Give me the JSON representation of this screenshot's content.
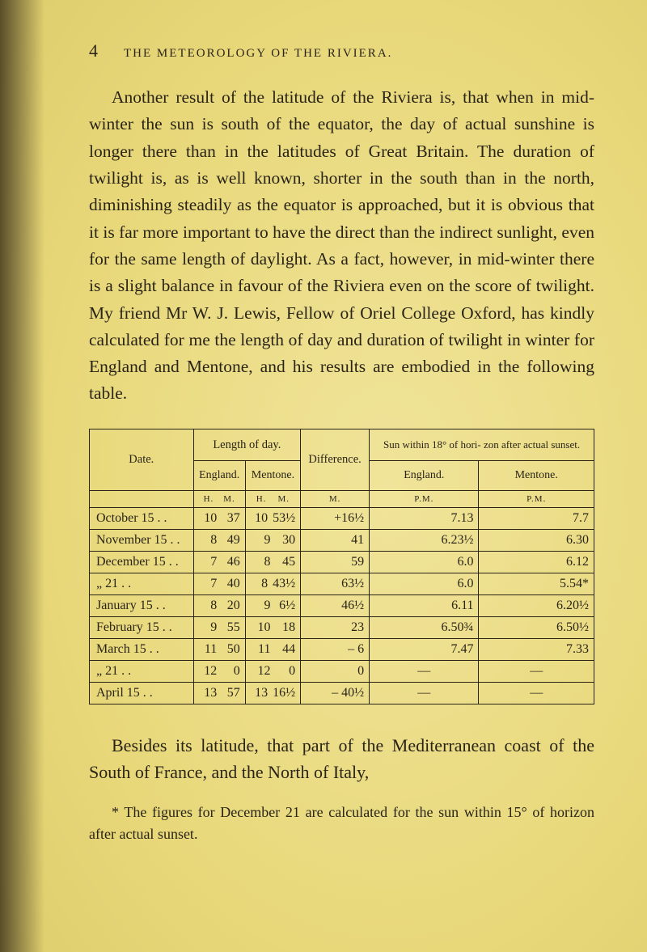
{
  "page": {
    "number": "4",
    "running_title": "THE METEOROLOGY OF THE RIVIERA."
  },
  "paragraph_main": "Another result of the latitude of the Riviera is, that when in mid-winter the sun is south of the equator, the day of actual sunshine is longer there than in the latitudes of Great Britain. The duration of twilight is, as is well known, shorter in the south than in the north, diminishing steadily as the equator is approached, but it is obvious that it is far more important to have the direct than the indirect sunlight, even for the same length of daylight. As a fact, however, in mid-winter there is a slight balance in favour of the Riviera even on the score of twilight. My friend Mr W. J. Lewis, Fellow of Oriel College Oxford, has kindly calculated for me the length of day and duration of twilight in winter for England and Mentone, and his results are embodied in the following table.",
  "table": {
    "headers": {
      "date": "Date.",
      "length": "Length of day.",
      "diff": "Difference.",
      "sun": "Sun within 18° of hori-\nzon after actual sunset.",
      "england": "England.",
      "mentone": "Mentone.",
      "england2": "England.",
      "mentone2": "Mentone.",
      "h": "H.",
      "m": "M.",
      "m2": "M.",
      "pm": "P.M.",
      "pm2": "P.M."
    },
    "rows": [
      {
        "date": "October   15 . .",
        "eng_h": "10",
        "eng_m": "37",
        "men_h": "10",
        "men_m": "53½",
        "diff": "+16½",
        "sun_eng": "7.13",
        "sun_men": "7.7"
      },
      {
        "date": "November 15 . .",
        "eng_h": "8",
        "eng_m": "49",
        "men_h": "9",
        "men_m": "30",
        "diff": "41",
        "sun_eng": "6.23½",
        "sun_men": "6.30"
      },
      {
        "date": "December 15 . .",
        "eng_h": "7",
        "eng_m": "46",
        "men_h": "8",
        "men_m": "45",
        "diff": "59",
        "sun_eng": "6.0",
        "sun_men": "6.12"
      },
      {
        "date": "     „        21 . .",
        "eng_h": "7",
        "eng_m": "40",
        "men_h": "8",
        "men_m": "43½",
        "diff": "63½",
        "sun_eng": "6.0",
        "sun_men": "5.54*"
      },
      {
        "date": "January  15 . .",
        "eng_h": "8",
        "eng_m": "20",
        "men_h": "9",
        "men_m": "6½",
        "diff": "46½",
        "sun_eng": "6.11",
        "sun_men": "6.20½"
      },
      {
        "date": "February 15 . .",
        "eng_h": "9",
        "eng_m": "55",
        "men_h": "10",
        "men_m": "18",
        "diff": "23",
        "sun_eng": "6.50¾",
        "sun_men": "6.50½"
      },
      {
        "date": "March     15 . .",
        "eng_h": "11",
        "eng_m": "50",
        "men_h": "11",
        "men_m": "44",
        "diff": "– 6",
        "sun_eng": "7.47",
        "sun_men": "7.33"
      },
      {
        "date": "     „        21 . .",
        "eng_h": "12",
        "eng_m": "0",
        "men_h": "12",
        "men_m": "0",
        "diff": "0",
        "sun_eng": "—",
        "sun_men": "—"
      },
      {
        "date": "April       15 . .",
        "eng_h": "13",
        "eng_m": "57",
        "men_h": "13",
        "men_m": "16½",
        "diff": "– 40½",
        "sun_eng": "—",
        "sun_men": "—"
      }
    ]
  },
  "caption": "Besides its latitude, that part of the Mediterranean coast of the South of France, and the North of Italy,",
  "footnote": "* The figures for December 21 are calculated for the sun within 15° of horizon after actual sunset."
}
